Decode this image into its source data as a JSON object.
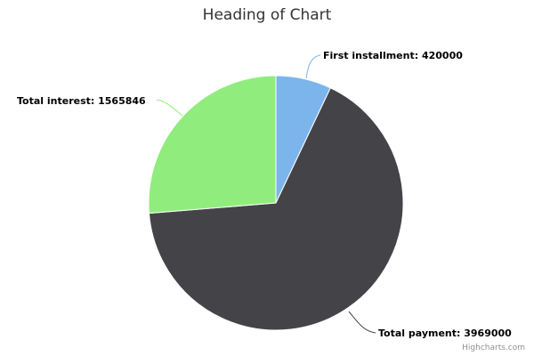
{
  "chart_data": {
    "type": "pie",
    "title": "Heading of Chart",
    "slices": [
      {
        "name": "First installment",
        "value": 420000,
        "label": "First installment: 420000",
        "color": "#7cb5ec"
      },
      {
        "name": "Total payment",
        "value": 3969000,
        "label": "Total payment: 3969000",
        "color": "#434348"
      },
      {
        "name": "Total interest",
        "value": 1565846,
        "label": "Total interest: 1565846",
        "color": "#90ed7d"
      }
    ]
  },
  "credits": "Highcharts.com"
}
